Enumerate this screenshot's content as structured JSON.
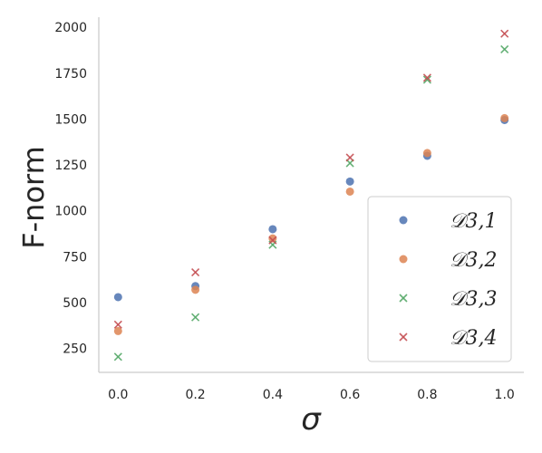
{
  "chart_data": {
    "type": "scatter",
    "xlabel": "σ",
    "ylabel": "F-norm",
    "xlim": [
      -0.05,
      1.05
    ],
    "ylim": [
      120,
      2055
    ],
    "xticks": [
      0.0,
      0.2,
      0.4,
      0.6,
      0.8,
      1.0
    ],
    "xtick_labels": [
      "0.0",
      "0.2",
      "0.4",
      "0.6",
      "0.8",
      "1.0"
    ],
    "yticks": [
      250,
      500,
      750,
      1000,
      1250,
      1500,
      1750,
      2000
    ],
    "ytick_labels": [
      "250",
      "500",
      "750",
      "1000",
      "1250",
      "1500",
      "1750",
      "2000"
    ],
    "grid": false,
    "legend_position": "lower-right",
    "x": [
      0.0,
      0.2,
      0.4,
      0.6,
      0.8,
      1.0
    ],
    "series": [
      {
        "name": "𝒟3,1",
        "marker": "circle",
        "color": "#4c72b0",
        "values": [
          530,
          590,
          900,
          1160,
          1300,
          1495
        ]
      },
      {
        "name": "𝒟3,2",
        "marker": "circle",
        "color": "#dd8452",
        "values": [
          345,
          570,
          850,
          1105,
          1315,
          1505
        ]
      },
      {
        "name": "𝒟3,3",
        "marker": "x",
        "color": "#55a868",
        "values": [
          205,
          420,
          815,
          1260,
          1715,
          1880
        ]
      },
      {
        "name": "𝒟3,4",
        "marker": "x",
        "color": "#c44e52",
        "values": [
          380,
          665,
          840,
          1290,
          1725,
          1965
        ]
      }
    ]
  }
}
